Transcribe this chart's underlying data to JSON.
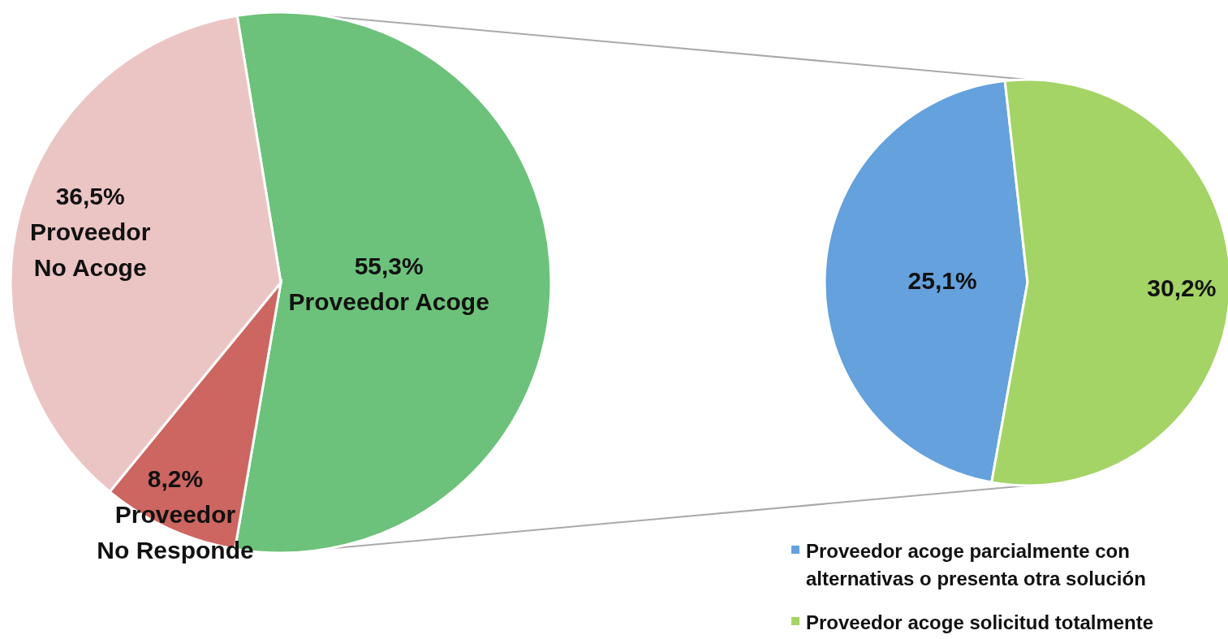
{
  "chart_data": [
    {
      "type": "pie",
      "categories": [
        "Proveedor Acoge",
        "Proveedor No Responde",
        "Proveedor No Acoge"
      ],
      "values": [
        55.3,
        8.2,
        36.5
      ],
      "colors": [
        "#6cc27a",
        "#cd6660",
        "#ebc5c4"
      ],
      "value_labels": [
        "55,3%",
        "8,2%",
        "36,5%"
      ]
    },
    {
      "type": "pie",
      "categories": [
        "Proveedor acoge parcialmente con alternativas o presenta otra solución",
        "Proveedor acoge solicitud totalmente"
      ],
      "values": [
        25.1,
        30.2
      ],
      "colors": [
        "#64a1dd",
        "#a3d465"
      ],
      "value_labels": [
        "25,1%",
        "30,2%"
      ],
      "legend": "bottom left"
    }
  ]
}
